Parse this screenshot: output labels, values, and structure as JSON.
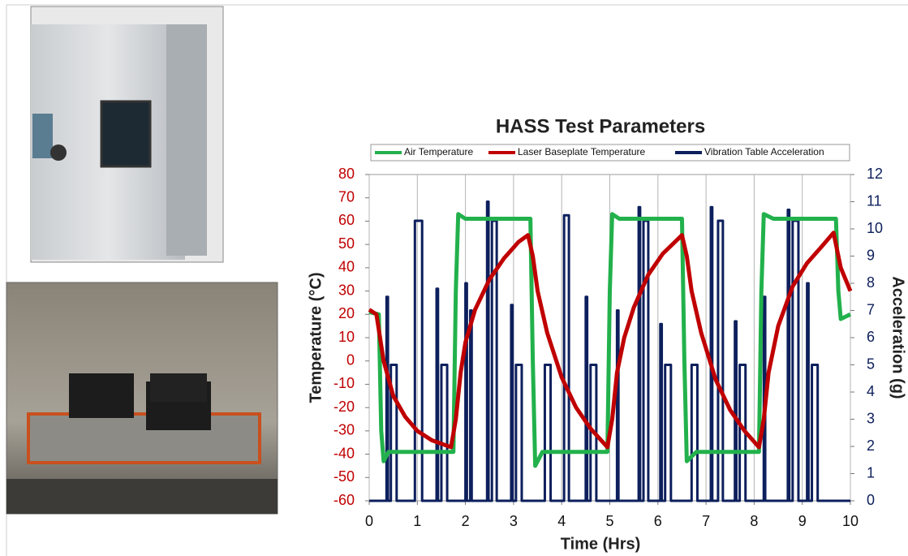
{
  "chart_data": {
    "type": "line",
    "title": "HASS Test Parameters",
    "x_label": "Time (Hrs)",
    "y_label": "Temperature (°C)",
    "y2_label": "Acceleration (g)",
    "xlim": [
      0,
      10
    ],
    "xticks": [
      0,
      1,
      2,
      3,
      4,
      5,
      6,
      7,
      8,
      9,
      10
    ],
    "ylim": [
      -60,
      80
    ],
    "yticks": [
      -60,
      -50,
      -40,
      -30,
      -20,
      -10,
      0,
      10,
      20,
      30,
      40,
      50,
      60,
      70,
      80
    ],
    "y2lim": [
      0,
      12
    ],
    "y2ticks": [
      0,
      1,
      2,
      3,
      4,
      5,
      6,
      7,
      8,
      9,
      10,
      11,
      12
    ],
    "grid": "x",
    "legend": "top",
    "y_color": "#c00000",
    "y2_color": "#0d1f5c",
    "series": [
      {
        "name": "Air Temperature",
        "color": "#22b14c",
        "x": [
          0,
          0.2,
          0.25,
          0.3,
          0.4,
          1.75,
          1.8,
          1.85,
          2.0,
          3.35,
          3.4,
          3.45,
          3.6,
          4.95,
          5.0,
          5.05,
          5.2,
          6.5,
          6.55,
          6.6,
          6.8,
          8.1,
          8.15,
          8.2,
          8.4,
          9.7,
          9.75,
          9.8,
          10
        ],
        "values": [
          21,
          20,
          -30,
          -43,
          -39,
          -39,
          30,
          63,
          61,
          61,
          0,
          -45,
          -39,
          -39,
          30,
          63,
          61,
          61,
          0,
          -43,
          -39,
          -39,
          30,
          63,
          61,
          61,
          30,
          18,
          20
        ]
      },
      {
        "name": "Laser Baseplate Temperature",
        "color": "#c00000",
        "x": [
          0,
          0.15,
          0.3,
          0.5,
          0.75,
          1.0,
          1.3,
          1.7,
          1.8,
          1.9,
          2.0,
          2.2,
          2.5,
          2.8,
          3.1,
          3.3,
          3.4,
          3.5,
          3.7,
          4.0,
          4.3,
          4.6,
          4.95,
          5.05,
          5.15,
          5.3,
          5.5,
          5.8,
          6.1,
          6.5,
          6.6,
          6.7,
          6.9,
          7.2,
          7.5,
          7.8,
          8.1,
          8.2,
          8.3,
          8.5,
          8.8,
          9.1,
          9.4,
          9.65,
          9.8,
          10
        ],
        "values": [
          22,
          20,
          0,
          -15,
          -24,
          -30,
          -34,
          -37,
          -25,
          -5,
          8,
          22,
          35,
          44,
          51,
          54,
          45,
          30,
          12,
          -7,
          -20,
          -29,
          -37,
          -25,
          -5,
          10,
          23,
          37,
          46,
          54,
          45,
          30,
          12,
          -8,
          -21,
          -30,
          -37,
          -25,
          -5,
          15,
          32,
          42,
          49,
          55,
          40,
          30
        ]
      },
      {
        "name": "Vibration Table Acceleration",
        "color": "#0d1f5c",
        "axis": "y2",
        "x": [
          0,
          0.36,
          0.36,
          0.39,
          0.39,
          0.45,
          0.45,
          0.57,
          0.57,
          0.95,
          0.95,
          1.1,
          1.1,
          1.4,
          1.4,
          1.43,
          1.43,
          1.5,
          1.5,
          1.62,
          1.62,
          2.0,
          2.0,
          2.03,
          2.03,
          2.1,
          2.1,
          2.13,
          2.13,
          2.45,
          2.45,
          2.48,
          2.48,
          2.55,
          2.55,
          2.65,
          2.65,
          2.95,
          2.95,
          2.98,
          2.98,
          3.05,
          3.05,
          3.17,
          3.17,
          3.65,
          3.65,
          3.77,
          3.77,
          4.05,
          4.05,
          4.15,
          4.15,
          4.5,
          4.5,
          4.53,
          4.53,
          4.6,
          4.6,
          4.72,
          4.72,
          5.15,
          5.15,
          5.18,
          5.18,
          5.6,
          5.6,
          5.63,
          5.63,
          5.7,
          5.7,
          5.8,
          5.8,
          6.05,
          6.05,
          6.08,
          6.08,
          6.15,
          6.15,
          6.27,
          6.27,
          6.7,
          6.7,
          6.82,
          6.82,
          7.1,
          7.1,
          7.13,
          7.13,
          7.25,
          7.25,
          7.35,
          7.35,
          7.6,
          7.6,
          7.63,
          7.63,
          7.7,
          7.7,
          7.82,
          7.82,
          8.2,
          8.2,
          8.23,
          8.23,
          8.7,
          8.7,
          8.73,
          8.73,
          8.8,
          8.8,
          8.92,
          8.92,
          9.1,
          9.1,
          9.13,
          9.13,
          9.2,
          9.2,
          9.32,
          9.32,
          10
        ],
        "values": [
          0,
          0,
          7.5,
          7.5,
          0,
          0,
          5,
          5,
          0,
          0,
          10.3,
          10.3,
          0,
          0,
          7.8,
          7.8,
          0,
          0,
          5,
          5,
          0,
          0,
          8,
          8,
          0,
          0,
          7,
          7,
          0,
          0,
          11,
          11,
          0,
          0,
          10.3,
          10.3,
          0,
          0,
          7.2,
          7.2,
          0,
          0,
          5,
          5,
          0,
          0,
          5,
          5,
          0,
          0,
          10.5,
          10.5,
          0,
          0,
          7.5,
          7.5,
          0,
          0,
          5,
          5,
          0,
          0,
          7,
          7,
          0,
          0,
          10.8,
          10.8,
          0,
          0,
          10.3,
          10.3,
          0,
          0,
          6.5,
          6.5,
          0,
          0,
          5,
          5,
          0,
          0,
          5,
          5,
          0,
          0,
          10.8,
          10.8,
          0,
          0,
          10.3,
          10.3,
          0,
          0,
          6.6,
          6.6,
          0,
          0,
          5,
          5,
          0,
          0,
          7.5,
          7.5,
          0,
          0,
          10.7,
          10.7,
          0,
          0,
          10.3,
          10.3,
          0,
          0,
          8,
          8,
          0,
          0,
          5,
          5,
          0,
          0
        ]
      }
    ]
  }
}
